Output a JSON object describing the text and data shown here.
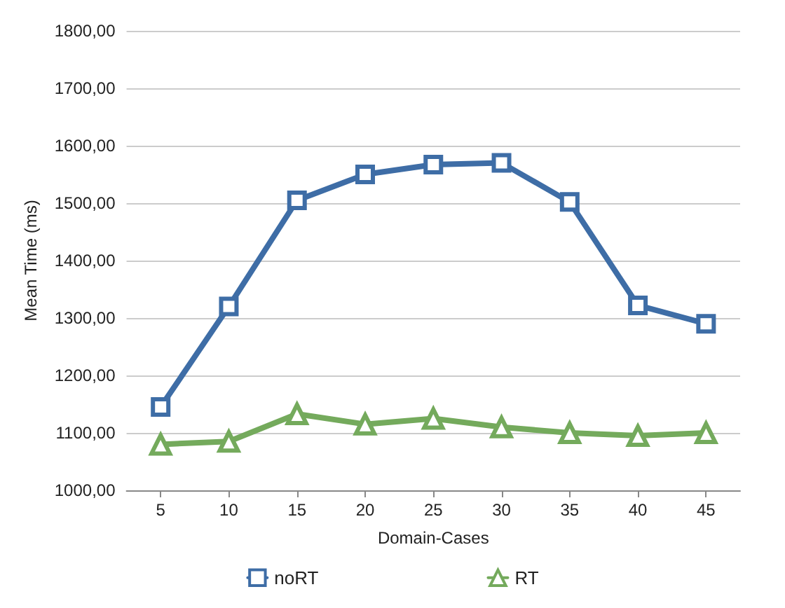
{
  "chart_data": {
    "type": "line",
    "xlabel": "Domain-Cases",
    "ylabel": "Mean Time (ms)",
    "categories": [
      "5",
      "10",
      "15",
      "20",
      "25",
      "30",
      "35",
      "40",
      "45"
    ],
    "series": [
      {
        "name": "noRT",
        "color": "#3e6da6",
        "marker": "square",
        "values": [
          1145,
          1320,
          1505,
          1550,
          1567,
          1570,
          1502,
          1322,
          1290
        ]
      },
      {
        "name": "RT",
        "color": "#74aa5c",
        "marker": "triangle",
        "values": [
          1080,
          1085,
          1133,
          1115,
          1125,
          1110,
          1100,
          1095,
          1100
        ]
      }
    ],
    "ylim": [
      1000,
      1800
    ],
    "yticks": [
      {
        "value": 1000,
        "label": "1000,00"
      },
      {
        "value": 1100,
        "label": "1100,00"
      },
      {
        "value": 1200,
        "label": "1200,00"
      },
      {
        "value": 1300,
        "label": "1300,00"
      },
      {
        "value": 1400,
        "label": "1400,00"
      },
      {
        "value": 1500,
        "label": "1500,00"
      },
      {
        "value": 1600,
        "label": "1600,00"
      },
      {
        "value": 1700,
        "label": "1700,00"
      },
      {
        "value": 1800,
        "label": "1800,00"
      }
    ],
    "grid": "y",
    "legend": "bottom",
    "line_style": "solid"
  }
}
